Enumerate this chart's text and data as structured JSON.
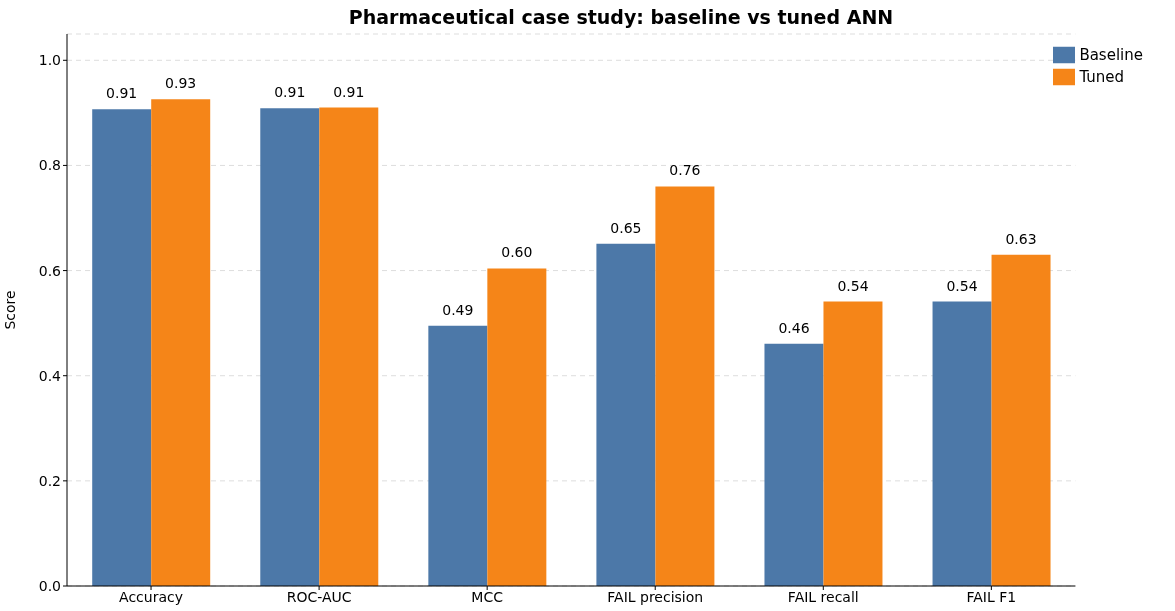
{
  "chart_data": {
    "type": "bar",
    "title": "Pharmaceutical case study: baseline vs tuned ANN",
    "ylabel": "Score",
    "categories": [
      "Accuracy",
      "ROC-AUC",
      "MCC",
      "FAIL precision",
      "FAIL recall",
      "FAIL F1"
    ],
    "series": [
      {
        "name": "Baseline",
        "color": "#4c78a8",
        "values": [
          0.907,
          0.909,
          0.495,
          0.651,
          0.461,
          0.541
        ],
        "value_labels": [
          "0.91",
          "0.91",
          "0.49",
          "0.65",
          "0.46",
          "0.54"
        ]
      },
      {
        "name": "Tuned",
        "color": "#f58518",
        "values": [
          0.926,
          0.91,
          0.604,
          0.76,
          0.541,
          0.63
        ],
        "value_labels": [
          "0.93",
          "0.91",
          "0.60",
          "0.76",
          "0.54",
          "0.63"
        ]
      }
    ],
    "ylim": [
      0,
      1.05
    ],
    "yticks": [
      {
        "value": 0,
        "label": "0.0"
      },
      {
        "value": 0.2,
        "label": "0.2"
      },
      {
        "value": 0.4,
        "label": "0.4"
      },
      {
        "value": 0.6,
        "label": "0.6"
      },
      {
        "value": 0.8,
        "label": "0.8"
      },
      {
        "value": 1,
        "label": "1.0"
      }
    ],
    "grid": "y",
    "legend": "top right"
  }
}
